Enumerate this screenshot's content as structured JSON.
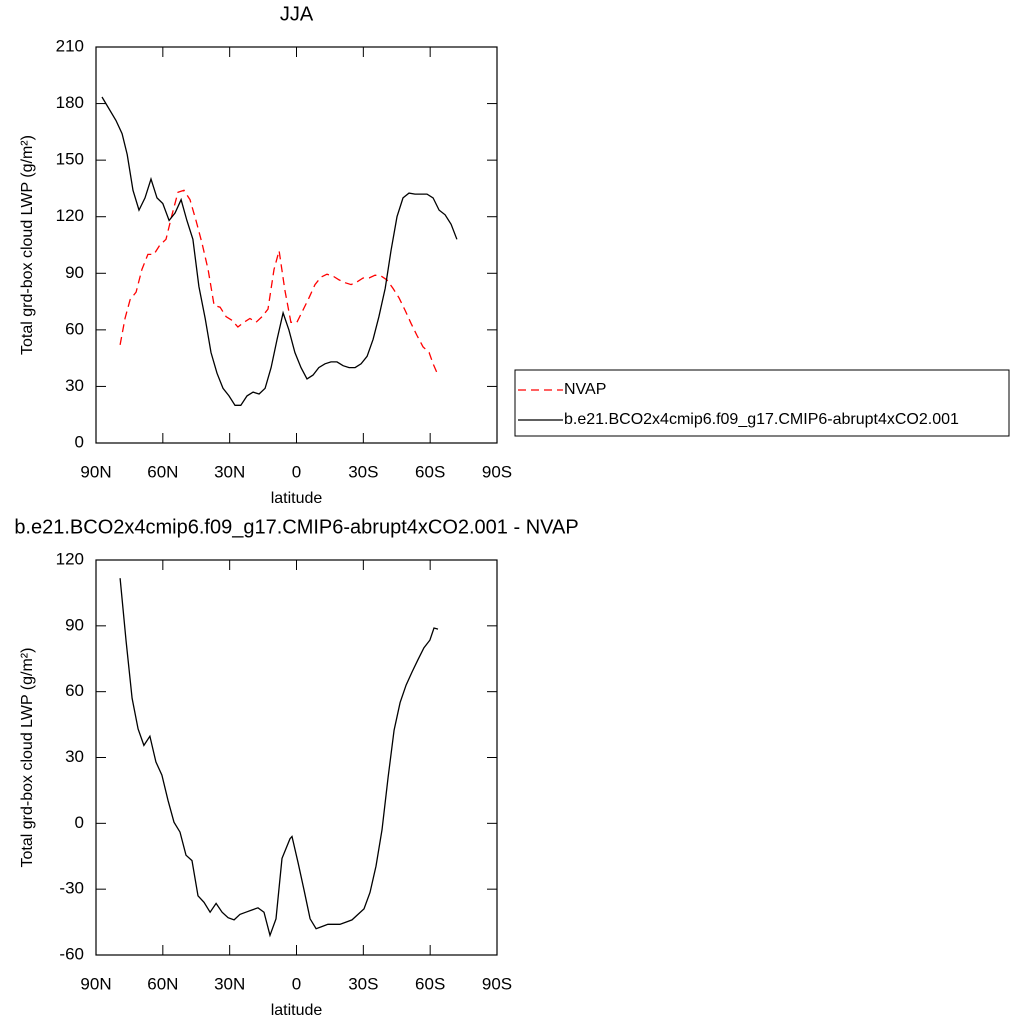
{
  "chart_data": [
    {
      "type": "line",
      "title": "JJA",
      "xlabel": "latitude",
      "ylabel": "Total grd-box cloud LWP (g/m²)",
      "xlim": [
        90,
        -90
      ],
      "xticks": [
        {
          "value": 90,
          "label": "90N"
        },
        {
          "value": 60,
          "label": "60N"
        },
        {
          "value": 30,
          "label": "30N"
        },
        0,
        {
          "value": -30,
          "label": "30S"
        },
        {
          "value": -60,
          "label": "60S"
        },
        {
          "value": -90,
          "label": "90S"
        }
      ],
      "ylim": [
        0,
        210
      ],
      "yticks": [
        0,
        30,
        60,
        90,
        120,
        150,
        180,
        210
      ],
      "legend": "right",
      "series": [
        {
          "name": "NVAP",
          "color": "#ff0000",
          "dashed": true,
          "x": [
            79.2,
            77,
            74.7,
            72,
            69.4,
            66.7,
            64,
            61.3,
            58.6,
            55.9,
            53.2,
            50.5,
            47.8,
            45.1,
            42.4,
            39.7,
            37,
            34.3,
            31.6,
            28.9,
            26.3,
            23.6,
            20.9,
            18.2,
            15.5,
            12.8,
            10.1,
            7.8,
            5.2,
            2.5,
            -0.2,
            -2.9,
            -5.6,
            -8.3,
            -11,
            -13.7,
            -16.4,
            -19.1,
            -21.8,
            -24.5,
            -27.2,
            -29.9,
            -32.6,
            -35.3,
            -38,
            -40.6,
            -43.3,
            -46,
            -48.7,
            -51.4,
            -54.1,
            -56.8,
            -59.5,
            -61.3,
            -63.5
          ],
          "values": [
            52,
            66,
            76,
            80,
            92,
            100,
            100,
            105,
            108,
            121,
            133,
            134,
            129,
            118,
            106,
            92,
            73,
            72,
            67,
            65,
            61.5,
            64,
            66,
            64,
            67,
            71,
            92,
            102,
            81,
            64,
            64,
            70.5,
            77,
            84,
            88,
            89.5,
            88.5,
            86.5,
            85,
            84,
            85.5,
            87.5,
            87.5,
            89,
            88.5,
            86.5,
            82,
            77,
            70.5,
            63.5,
            57,
            51,
            48,
            42,
            36
          ]
        },
        {
          "name": "b.e21.BCO2x4cmip6.f09_g17.CMIP6-abrupt4xCO2.001",
          "color": "#000000",
          "dashed": false,
          "x": [
            87.3,
            81,
            78.3,
            76,
            73.4,
            70.7,
            68,
            65.3,
            62.6,
            60,
            57.2,
            54.5,
            51.8,
            49.2,
            46.5,
            43.8,
            41,
            38.4,
            35.7,
            33,
            30.3,
            27.6,
            25,
            22.2,
            19.5,
            16.8,
            14.1,
            11.4,
            8.7,
            6,
            3.4,
            0.7,
            -2,
            -4.7,
            -7.4,
            -10,
            -12.8,
            -15.5,
            -18.2,
            -20.9,
            -23.6,
            -26.3,
            -29,
            -31.7,
            -34.4,
            -37,
            -39.8,
            -42.4,
            -45.1,
            -47.8,
            -50.5,
            -53.2,
            -55.9,
            -58.6,
            -61.3,
            -64,
            -66.7,
            -69.4,
            -72
          ],
          "values": [
            183.5,
            171,
            164,
            153,
            134,
            123.5,
            130,
            140,
            130,
            127,
            118,
            122,
            129,
            118,
            108,
            83,
            66,
            48,
            37,
            29,
            25,
            20,
            20,
            25,
            27,
            26,
            29,
            40,
            55,
            69,
            60,
            48,
            40,
            34,
            36,
            40,
            42,
            43,
            43,
            41,
            40,
            40,
            42,
            46,
            55,
            67,
            82,
            102,
            120,
            130,
            132.5,
            132,
            132,
            132,
            130,
            123.5,
            121,
            116,
            108
          ]
        }
      ]
    },
    {
      "type": "line",
      "title": "b.e21.BCO2x4cmip6.f09_g17.CMIP6-abrupt4xCO2.001 - NVAP",
      "xlabel": "latitude",
      "ylabel": "Total grd-box cloud LWP (g/m²)",
      "xlim": [
        90,
        -90
      ],
      "xticks": [
        {
          "value": 90,
          "label": "90N"
        },
        {
          "value": 60,
          "label": "60N"
        },
        {
          "value": 30,
          "label": "30N"
        },
        0,
        {
          "value": -30,
          "label": "30S"
        },
        {
          "value": -60,
          "label": "60S"
        },
        {
          "value": -90,
          "label": "90S"
        }
      ],
      "ylim": [
        -60,
        120
      ],
      "yticks": [
        -60,
        -30,
        0,
        30,
        60,
        90,
        120
      ],
      "series": [
        {
          "color": "#000000",
          "dashed": false,
          "x": [
            79.2,
            76.5,
            73.8,
            71.1,
            68.5,
            65.8,
            63.1,
            60.4,
            57.7,
            55,
            52.3,
            49.6,
            46.9,
            44.2,
            41.5,
            38.8,
            36.1,
            33.4,
            30.7,
            28,
            25.4,
            22.7,
            20,
            17.3,
            14.6,
            11.9,
            9.2,
            6.5,
            2.9,
            2,
            -0.7,
            -3.4,
            -6.1,
            -8.8,
            -11.5,
            -14.1,
            -16.8,
            -19.5,
            -22.2,
            -24.9,
            -27.6,
            -30.3,
            -33,
            -35.7,
            -38.4,
            -41.1,
            -43.8,
            -46.5,
            -49.2,
            -51.9,
            -54.5,
            -57.2,
            -59.9,
            -61.7,
            -63.5
          ],
          "values": [
            111.7,
            83,
            57,
            43,
            35.5,
            39.7,
            28,
            22,
            10.5,
            0.5,
            -4,
            -14.5,
            -17,
            -33,
            -36,
            -40.5,
            -36.5,
            -40.5,
            -43,
            -44,
            -41.5,
            -40.5,
            -39.5,
            -38.5,
            -40.5,
            -51,
            -43.5,
            -16,
            -7,
            -6,
            -18,
            -30.5,
            -43.5,
            -48,
            -47,
            -46,
            -46,
            -46,
            -45,
            -44,
            -41.5,
            -39,
            -31.5,
            -19.5,
            -3,
            21,
            42.5,
            55,
            63,
            69,
            74.5,
            80,
            83.5,
            89,
            88.5
          ]
        }
      ]
    }
  ]
}
